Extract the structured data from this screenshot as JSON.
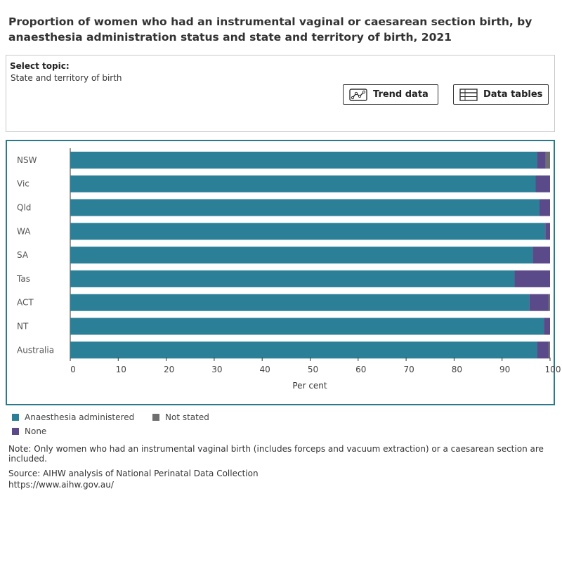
{
  "title": "Proportion of women who had an instrumental vaginal or caesarean section birth, by anaesthesia administration status and state and territory of birth, 2021",
  "topic": {
    "label": "Select topic:",
    "value": "State and territory of birth"
  },
  "buttons": {
    "trend": "Trend data",
    "tables": "Data tables"
  },
  "colors": {
    "anaesthesia": "#2b7f96",
    "none": "#5b4a8a",
    "not_stated": "#6f6f6f",
    "frame": "#2b7a8c"
  },
  "chart_data": {
    "type": "bar",
    "orientation": "horizontal",
    "stacked": true,
    "categories": [
      "NSW",
      "Vic",
      "Qld",
      "WA",
      "SA",
      "Tas",
      "ACT",
      "NT",
      "Australia"
    ],
    "series": [
      {
        "name": "Anaesthesia administered",
        "color": "#2b7f96",
        "values": [
          97.3,
          97.0,
          97.8,
          99.0,
          96.4,
          92.6,
          95.7,
          98.7,
          97.3
        ]
      },
      {
        "name": "None",
        "color": "#5b4a8a",
        "values": [
          1.8,
          3.0,
          2.2,
          1.0,
          3.6,
          7.4,
          4.0,
          1.3,
          2.4
        ]
      },
      {
        "name": "Not stated",
        "color": "#6f6f6f",
        "values": [
          0.9,
          0.0,
          0.0,
          0.0,
          0.0,
          0.0,
          0.3,
          0.0,
          0.3
        ]
      }
    ],
    "xlabel": "Per cent",
    "xlim": [
      0,
      100
    ],
    "xticks": [
      0,
      10,
      20,
      30,
      40,
      50,
      60,
      70,
      80,
      90,
      100
    ],
    "legend": [
      "Anaesthesia administered",
      "Not stated",
      "None"
    ],
    "legend_position": "bottom-left"
  },
  "note": "Note: Only women who had an instrumental vaginal birth (includes forceps and vacuum extraction) or a caesarean section are included.",
  "source": {
    "line1": "Source: AIHW analysis of National Perinatal Data Collection",
    "line2": "https://www.aihw.gov.au/"
  }
}
